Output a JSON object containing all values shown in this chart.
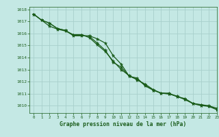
{
  "title": "Graphe pression niveau de la mer (hPa)",
  "background_color": "#c4e8e4",
  "grid_color": "#a8d0cc",
  "line_color": "#1a5c1a",
  "xlim": [
    -0.5,
    23
  ],
  "ylim": [
    1009.4,
    1018.2
  ],
  "yticks": [
    1010,
    1011,
    1012,
    1013,
    1014,
    1015,
    1016,
    1017,
    1018
  ],
  "xticks": [
    0,
    1,
    2,
    3,
    4,
    5,
    6,
    7,
    8,
    9,
    10,
    11,
    12,
    13,
    14,
    15,
    16,
    17,
    18,
    19,
    20,
    21,
    22,
    23
  ],
  "series1_x": [
    0,
    1,
    2,
    3,
    4,
    5,
    6,
    7,
    8,
    9,
    10,
    11,
    12,
    13,
    14,
    15,
    16,
    17,
    18,
    19,
    20,
    21,
    22,
    23
  ],
  "series1_y": [
    1017.6,
    1017.1,
    1016.85,
    1016.4,
    1016.25,
    1015.8,
    1015.8,
    1015.8,
    1015.55,
    1015.2,
    1014.15,
    1013.45,
    1012.45,
    1012.3,
    1011.65,
    1011.3,
    1011.05,
    1011.05,
    1010.75,
    1010.6,
    1010.2,
    1010.1,
    1010.0,
    1009.8
  ],
  "series2_x": [
    0,
    1,
    2,
    3,
    4,
    5,
    6,
    7,
    8,
    9,
    10,
    11,
    12,
    13,
    14,
    15,
    16,
    17,
    18,
    19,
    20,
    21,
    22,
    23
  ],
  "series2_y": [
    1017.6,
    1017.1,
    1016.85,
    1016.4,
    1016.25,
    1015.85,
    1015.85,
    1015.75,
    1015.2,
    1014.6,
    1013.6,
    1013.2,
    1012.45,
    1012.2,
    1011.7,
    1011.3,
    1011.05,
    1011.0,
    1010.8,
    1010.55,
    1010.2,
    1010.05,
    1009.98,
    1009.7
  ],
  "series3_x": [
    0,
    1,
    2,
    3,
    4,
    5,
    6,
    7,
    8,
    9,
    10,
    11,
    12,
    13,
    14,
    15,
    16,
    17,
    18,
    19,
    20,
    21,
    22,
    23
  ],
  "series3_y": [
    1017.6,
    1017.1,
    1016.6,
    1016.35,
    1016.2,
    1015.9,
    1015.9,
    1015.65,
    1015.05,
    1014.5,
    1013.7,
    1013.0,
    1012.5,
    1012.15,
    1011.8,
    1011.35,
    1011.05,
    1010.98,
    1010.78,
    1010.52,
    1010.18,
    1010.02,
    1009.95,
    1009.68
  ]
}
